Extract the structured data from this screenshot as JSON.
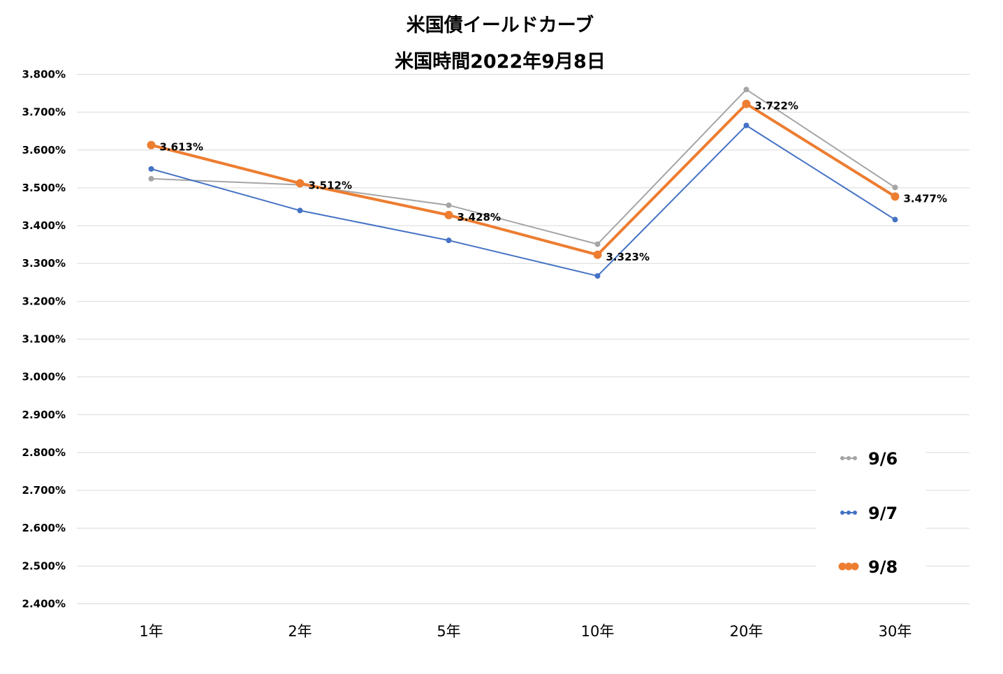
{
  "chart_data": {
    "type": "line",
    "title": "米国債イールドカーブ",
    "subtitle": "米国時間2022年9月8日",
    "categories": [
      "1年",
      "2年",
      "5年",
      "10年",
      "20年",
      "30年"
    ],
    "ylim": [
      2.4,
      3.8
    ],
    "y_ticks": [
      "3.800%",
      "3.700%",
      "3.600%",
      "3.500%",
      "3.400%",
      "3.300%",
      "3.200%",
      "3.100%",
      "3.000%",
      "2.900%",
      "2.800%",
      "2.700%",
      "2.600%",
      "2.500%",
      "2.400%"
    ],
    "grid": true,
    "legend_position": "bottom-right",
    "series": [
      {
        "name": "9/6",
        "color": "#A5A5A5",
        "values": [
          3.524,
          3.508,
          3.454,
          3.351,
          3.76,
          3.501
        ]
      },
      {
        "name": "9/7",
        "color": "#4472C4",
        "values": [
          3.55,
          3.44,
          3.361,
          3.267,
          3.665,
          3.416
        ]
      },
      {
        "name": "9/8",
        "color": "#ED7D31",
        "values": [
          3.613,
          3.512,
          3.428,
          3.323,
          3.722,
          3.477
        ],
        "data_labels": [
          "3.613%",
          "3.512%",
          "3.428%",
          "3.323%",
          "3.722%",
          "3.477%"
        ]
      }
    ]
  }
}
